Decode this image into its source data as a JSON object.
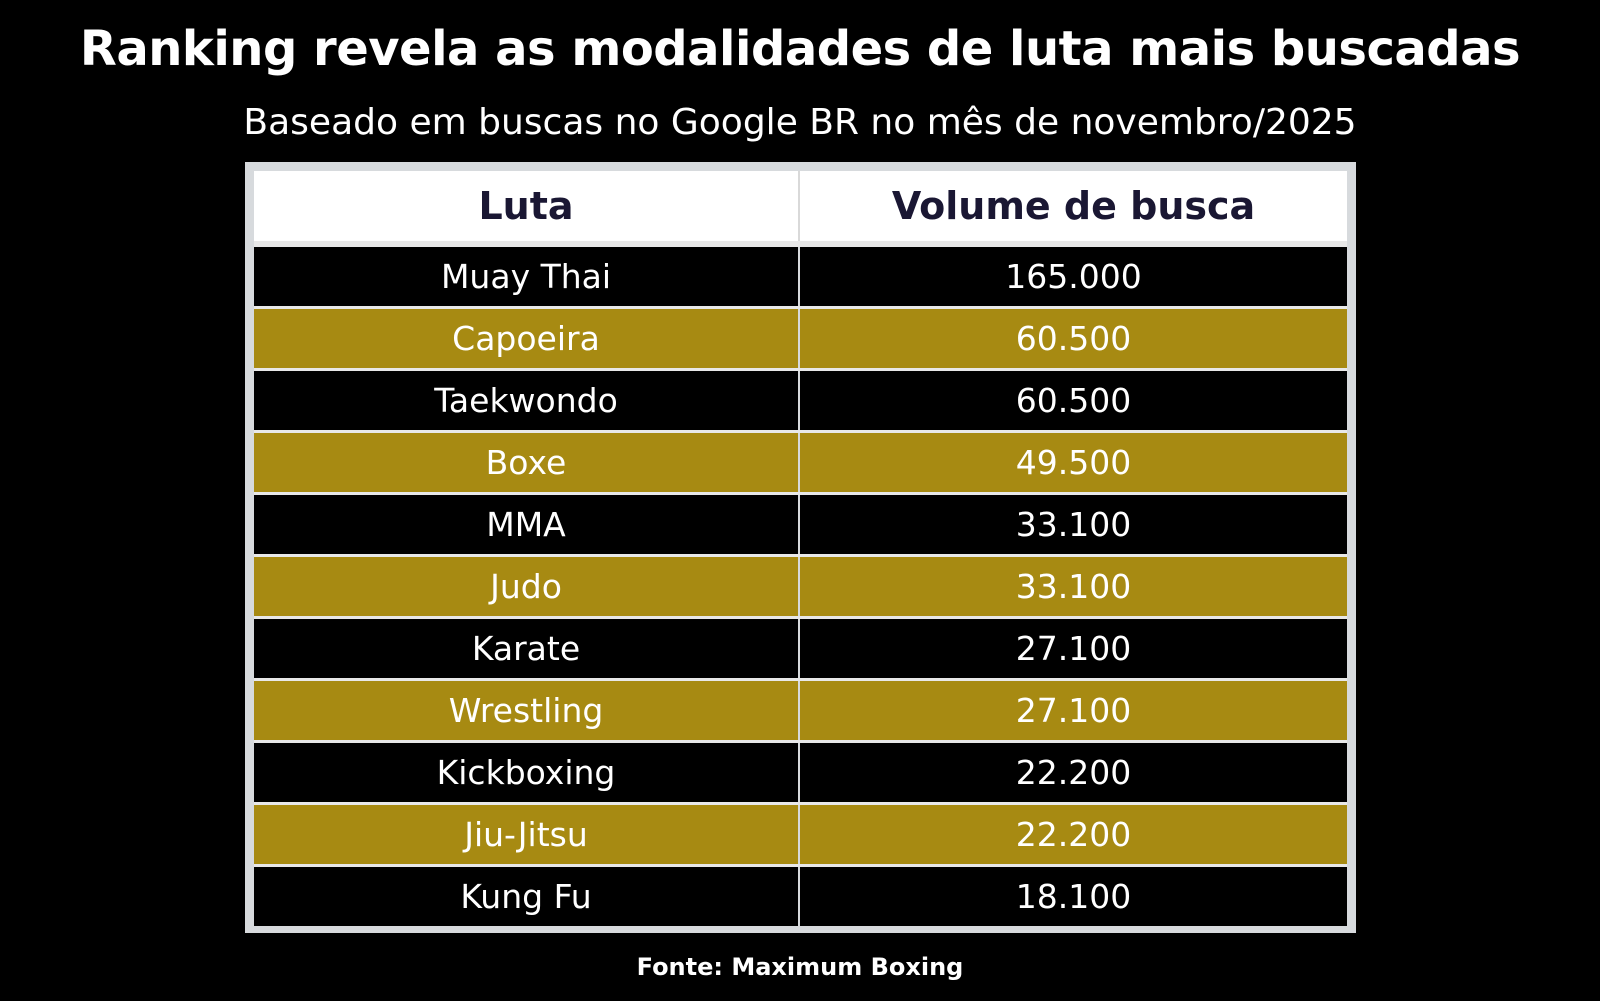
{
  "title": "Ranking revela as modalidades de luta mais buscadas",
  "subtitle": "Baseado em buscas no Google BR no mês de novembro/2025",
  "source": "Fonte: Maximum Boxing",
  "colors": {
    "background": "#000000",
    "row_dark": "#000000",
    "row_gold": "#a78a12",
    "header_bg": "#ffffff",
    "header_text": "#1a1733",
    "frame": "#d7dadd"
  },
  "chart_data": {
    "type": "table",
    "title": "Ranking revela as modalidades de luta mais buscadas",
    "subtitle": "Baseado em buscas no Google BR no mês de novembro/2025",
    "columns": [
      "Luta",
      "Volume de busca"
    ],
    "rows": [
      [
        "Muay Thai",
        "165.000"
      ],
      [
        "Capoeira",
        "60.500"
      ],
      [
        "Taekwondo",
        "60.500"
      ],
      [
        "Boxe",
        "49.500"
      ],
      [
        "MMA",
        "33.100"
      ],
      [
        "Judo",
        "33.100"
      ],
      [
        "Karate",
        "27.100"
      ],
      [
        "Wrestling",
        "27.100"
      ],
      [
        "Kickboxing",
        "22.200"
      ],
      [
        "Jiu-Jitsu",
        "22.200"
      ],
      [
        "Kung Fu",
        "18.100"
      ]
    ],
    "values": [
      165000,
      60500,
      60500,
      49500,
      33100,
      33100,
      27100,
      27100,
      22200,
      22200,
      18100
    ]
  }
}
